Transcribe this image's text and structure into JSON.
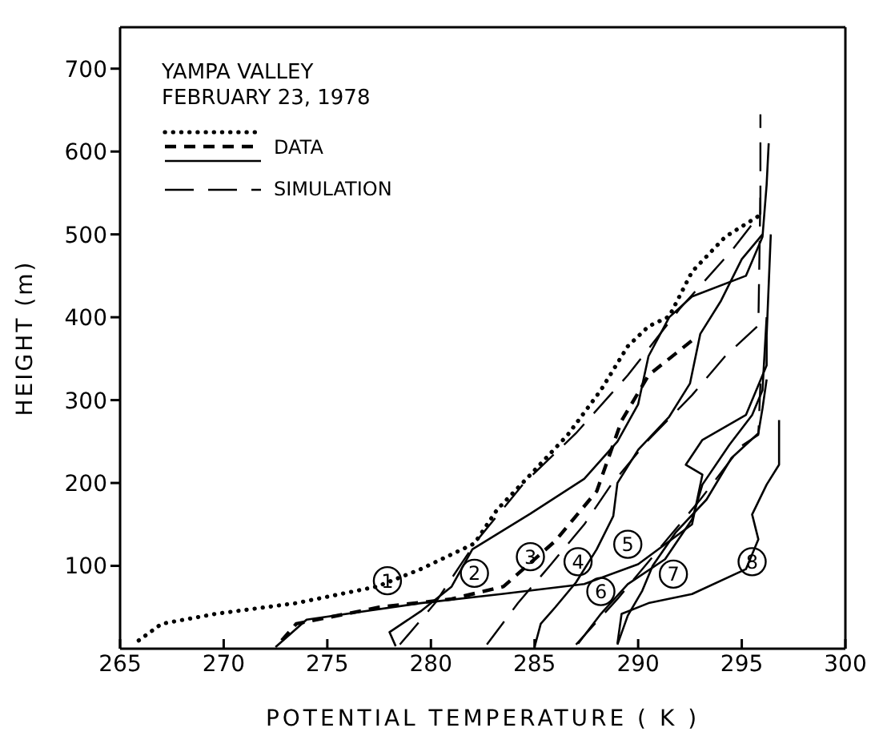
{
  "chart_data": {
    "type": "line",
    "title": "YAMPA VALLEY",
    "subtitle": "FEBRUARY 23, 1978",
    "xlabel": "POTENTIAL TEMPERATURE  ( K )",
    "ylabel": "HEIGHT (m)",
    "xlim": [
      265,
      300
    ],
    "xticks": [
      265,
      270,
      275,
      280,
      285,
      290,
      295,
      300
    ],
    "ylim": [
      0,
      750
    ],
    "yticks": [
      100,
      200,
      300,
      400,
      500,
      600,
      700
    ],
    "grid": false,
    "legend": "top left",
    "marker": "none",
    "series": [
      {
        "name": "DATA",
        "color": "#000000",
        "line_style": "dotted",
        "x": [
          265.9,
          267,
          269.6,
          273.5,
          277.4,
          279.5,
          282.1,
          283.2,
          284.8,
          286.6,
          288.2,
          289.5,
          290.5,
          291.5,
          292.6,
          294.2,
          295.8
        ],
        "values": [
          10,
          30,
          42,
          55,
          75,
          96,
          127,
          168,
          210,
          258,
          312,
          365,
          389,
          401,
          455,
          497,
          522
        ]
      },
      {
        "color": "#000000",
        "line_style": "dashed",
        "x": [
          272.8,
          273.5,
          277.5,
          281,
          283.5,
          286,
          288,
          289.2,
          290.5,
          292.6
        ],
        "values": [
          10,
          30,
          50,
          60,
          75,
          130,
          190,
          275,
          330,
          372
        ]
      },
      {
        "color": "#000000",
        "line_style": "solid",
        "x": [
          278.3,
          278,
          279.5,
          281,
          282,
          284.8,
          287.4,
          289,
          290,
          290.5,
          291.5,
          292.6,
          295.2,
          296,
          296.2,
          296.3
        ],
        "values": [
          3,
          20,
          45,
          75,
          120,
          163,
          205,
          250,
          295,
          353,
          400,
          425,
          450,
          497,
          560,
          610
        ]
      },
      {
        "color": "#000000",
        "line_style": "solid",
        "x": [
          272.5,
          274,
          279.5,
          283.4,
          287.4,
          290,
          292.6,
          293.1,
          292.3,
          293.1,
          295.2,
          296.2,
          296.2,
          296.4
        ],
        "values": [
          2,
          35,
          55,
          66,
          78,
          102,
          150,
          210,
          222,
          252,
          282,
          342,
          378,
          500
        ]
      },
      {
        "color": "#000000",
        "line_style": "solid",
        "x": [
          285,
          285.3,
          286,
          287,
          288,
          288.8,
          289,
          290,
          291.5,
          292.5,
          293,
          294,
          295,
          296
        ],
        "values": [
          2,
          30,
          50,
          80,
          120,
          160,
          200,
          240,
          280,
          320,
          380,
          420,
          470,
          500
        ]
      },
      {
        "color": "#000000",
        "line_style": "solid",
        "x": [
          287.1,
          288.2,
          289.5,
          291.3,
          292.6,
          293.1,
          294.4,
          295.5,
          296,
          296.2
        ],
        "values": [
          6,
          42,
          78,
          108,
          156,
          198,
          246,
          282,
          312,
          400
        ]
      },
      {
        "color": "#000000",
        "line_style": "solid",
        "x": [
          289,
          289.5,
          290.2,
          290.7,
          291.8,
          293.3,
          294.5,
          295.8,
          296,
          296.2
        ],
        "values": [
          5,
          40,
          70,
          100,
          140,
          180,
          230,
          260,
          290,
          325
        ]
      },
      {
        "color": "#000000",
        "line_style": "solid",
        "x": [
          289,
          289.2,
          290.5,
          292.6,
          295.2,
          295.8,
          295.5,
          296.2,
          296.8,
          296.8
        ],
        "values": [
          6,
          42,
          55,
          66,
          96,
          132,
          162,
          198,
          222,
          276
        ]
      },
      {
        "name": "SIMULATION",
        "color": "#000000",
        "line_style": "longdash",
        "x": [
          278.5,
          280.2,
          282.2,
          284.5,
          287,
          289.5,
          292,
          294.5,
          295.9,
          295.9
        ],
        "values": [
          5,
          55,
          130,
          200,
          260,
          330,
          410,
          480,
          525,
          645
        ]
      },
      {
        "color": "#000000",
        "line_style": "longdash",
        "x": [
          282.7,
          284.2,
          285.8,
          287.4,
          288.7,
          290.5,
          292.6,
          294.2,
          295.8,
          295.9
        ],
        "values": [
          5,
          55,
          102,
          150,
          198,
          252,
          306,
          353,
          390,
          550
        ]
      },
      {
        "color": "#000000",
        "line_style": "longdash",
        "x": [
          287,
          289,
          291,
          293,
          295,
          295.8,
          295.9
        ],
        "values": [
          5,
          60,
          120,
          180,
          245,
          258,
          320
        ]
      }
    ],
    "annotations": [
      {
        "text": "1",
        "x": 277.9,
        "y": 82
      },
      {
        "text": "2",
        "x": 282.1,
        "y": 91
      },
      {
        "text": "3",
        "x": 284.8,
        "y": 111
      },
      {
        "text": "4",
        "x": 287.1,
        "y": 105
      },
      {
        "text": "5",
        "x": 289.5,
        "y": 126
      },
      {
        "text": "6",
        "x": 288.2,
        "y": 69
      },
      {
        "text": "7",
        "x": 291.7,
        "y": 90
      },
      {
        "text": "8",
        "x": 295.5,
        "y": 105
      }
    ]
  }
}
